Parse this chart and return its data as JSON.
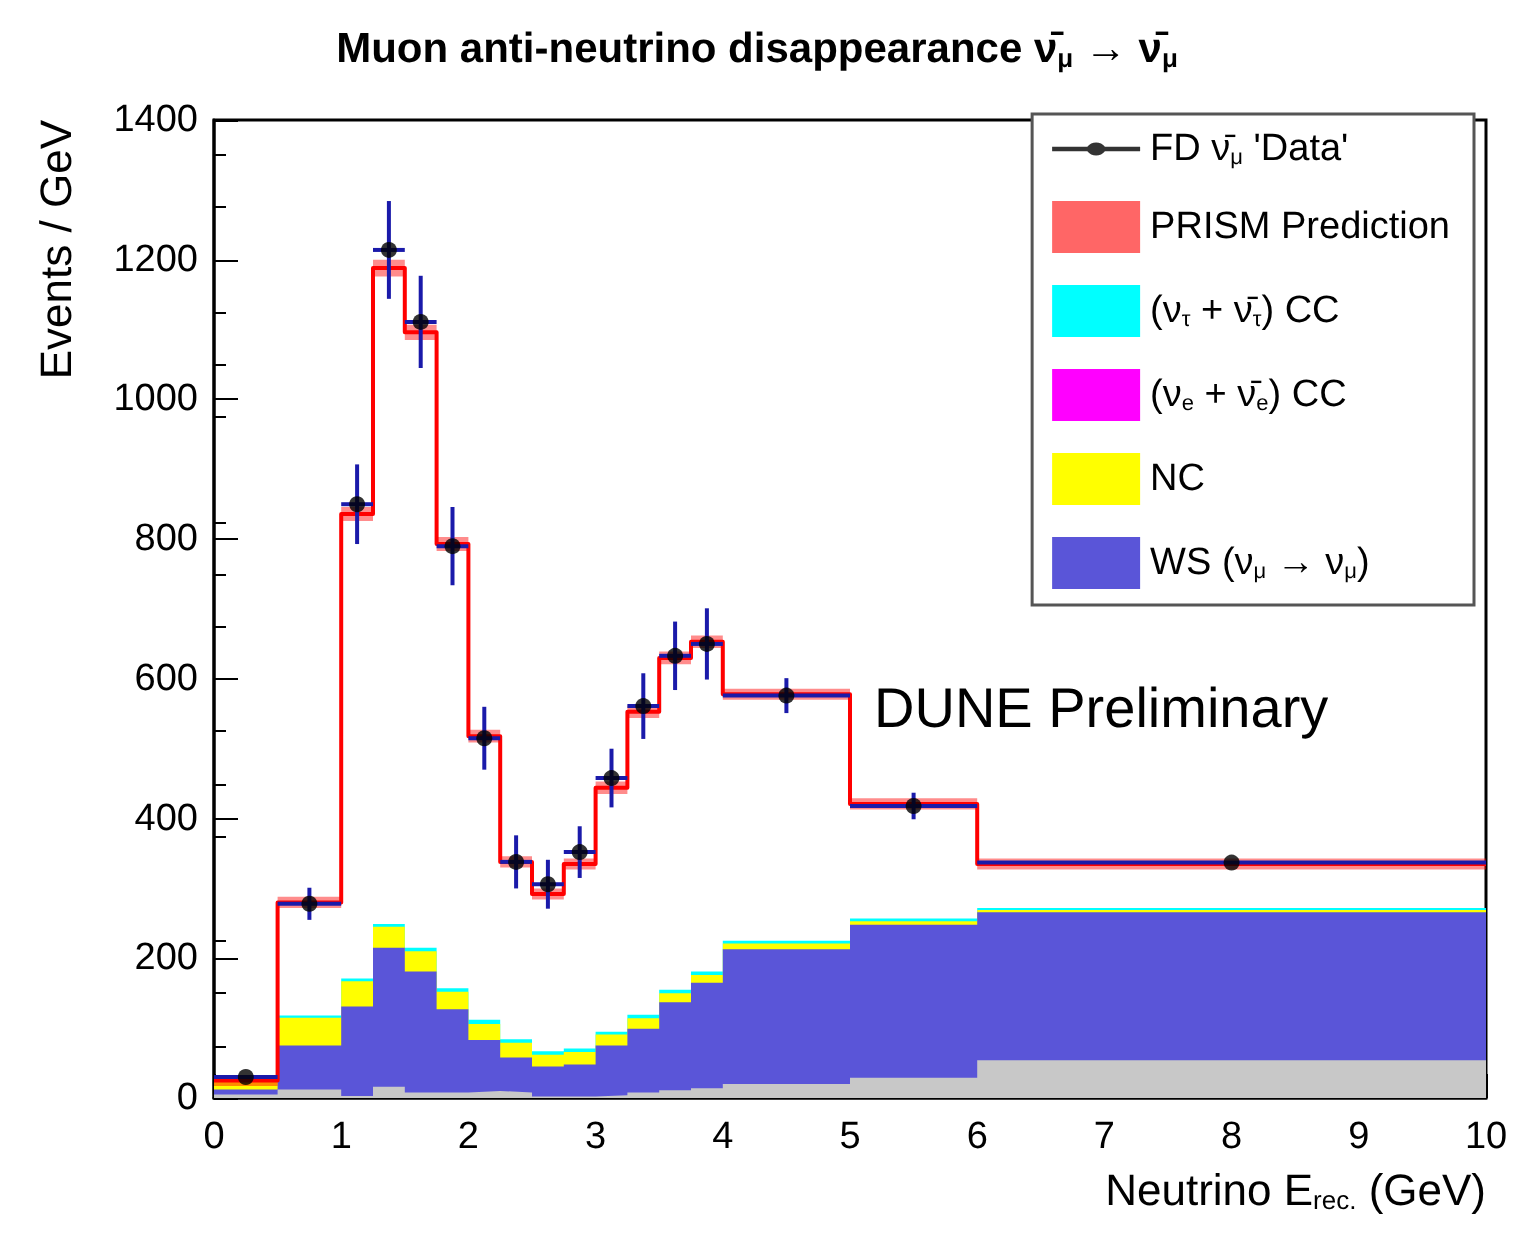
{
  "chart_data": {
    "type": "area",
    "title": "Muon anti-neutrino disappearance ν̄$_{μ}$ → ν̄$_{μ}$",
    "xlabel": "Neutrino E$_{rec.}$ (GeV)",
    "ylabel": "Events / GeV",
    "annotations": [
      "DUNE Preliminary"
    ],
    "x": [
      0,
      0.5,
      1,
      1.25,
      1.5,
      1.75,
      2,
      2.25,
      2.5,
      2.75,
      3,
      3.25,
      3.5,
      3.75,
      4,
      5,
      6,
      10
    ],
    "stacked": true,
    "series": [
      {
        "color": "#c8c8c8",
        "values": [
          5,
          12,
          3,
          16,
          8,
          8,
          10,
          8,
          2,
          2,
          4,
          8,
          11,
          14,
          20,
          29,
          54,
          54
        ]
      },
      {
        "name": "WS (ν$_{μ}$ → ν$_{μ}$)",
        "color": "#5a55d8",
        "values": [
          7,
          63,
          128,
          199,
          173,
          119,
          73,
          50,
          43,
          46,
          71,
          91,
          126,
          151,
          193,
          219,
          212,
          212
        ]
      },
      {
        "name": "NC",
        "color": "#ffff00",
        "values": [
          14,
          40,
          36,
          30,
          29,
          25,
          23,
          21,
          17,
          18,
          16,
          15,
          13,
          11,
          8,
          5,
          3,
          3
        ]
      },
      {
        "name": "(ν$_{e}$ + ν̄$_{e}$) CC",
        "color": "#ff00ff",
        "values": [
          null,
          null,
          null,
          null,
          null,
          null,
          null,
          null,
          null,
          null,
          null,
          null,
          null,
          null,
          null,
          null,
          null,
          null
        ]
      },
      {
        "name": "(ν$_{τ}$ + ν̄$_{τ}$) CC",
        "color": "#00ffff",
        "values": [
          2,
          3,
          4,
          4,
          5,
          5,
          6,
          5,
          5,
          5,
          4,
          5,
          5,
          5,
          4,
          4,
          3,
          3
        ]
      },
      {
        "name": "PRISM Prediction",
        "type": "step",
        "color": "#ff0000",
        "x": [
          0,
          0.5,
          1,
          1.25,
          1.5,
          1.75,
          2,
          2.25,
          2.5,
          2.75,
          3,
          3.25,
          3.5,
          3.75,
          4,
          5,
          6,
          10
        ],
        "values": [
          25,
          280,
          836,
          1188,
          1096,
          793,
          518,
          338,
          292,
          335,
          444,
          553,
          630,
          653,
          578,
          421,
          335,
          335
        ],
        "lower": [
          17,
          272,
          826,
          1176,
          1085,
          783,
          509,
          330,
          284,
          327,
          435,
          544,
          621,
          644,
          570,
          413,
          327,
          327
        ],
        "upper": [
          33,
          288,
          846,
          1200,
          1107,
          803,
          527,
          346,
          300,
          343,
          453,
          562,
          639,
          662,
          586,
          429,
          343,
          343
        ],
        "marker": "none"
      },
      {
        "name": "FD ν̄$_{μ}$ 'Data'",
        "type": "scatter",
        "color": "#000000",
        "x": [
          0.25,
          0.75,
          1.125,
          1.375,
          1.625,
          1.875,
          2.125,
          2.375,
          2.625,
          2.875,
          3.125,
          3.375,
          3.625,
          3.875,
          4.5,
          5.5,
          8
        ],
        "values": [
          30,
          278,
          850,
          1214,
          1111,
          790,
          515,
          338,
          306,
          352,
          458,
          561,
          633,
          650,
          576,
          418,
          337
        ],
        "marker": "circle",
        "errors": [
          null,
          23,
          57,
          70,
          66,
          56,
          45,
          38,
          35,
          37,
          42,
          47,
          49,
          51,
          25,
          19,
          null
        ],
        "xerrors": [
          0.25,
          0.25,
          0.125,
          0.125,
          0.125,
          0.125,
          0.125,
          0.125,
          0.125,
          0.125,
          0.125,
          0.125,
          0.125,
          0.125,
          0.5,
          0.5,
          2
        ]
      }
    ],
    "legend": "top right",
    "grid": false,
    "xlim": [
      0,
      10
    ],
    "xticks": [
      0,
      1,
      2,
      3,
      4,
      5,
      6,
      7,
      8,
      9,
      10
    ],
    "ylim": [
      0,
      1400
    ],
    "yticks": [
      0,
      200,
      400,
      600,
      800,
      1000,
      1200,
      1400
    ]
  }
}
